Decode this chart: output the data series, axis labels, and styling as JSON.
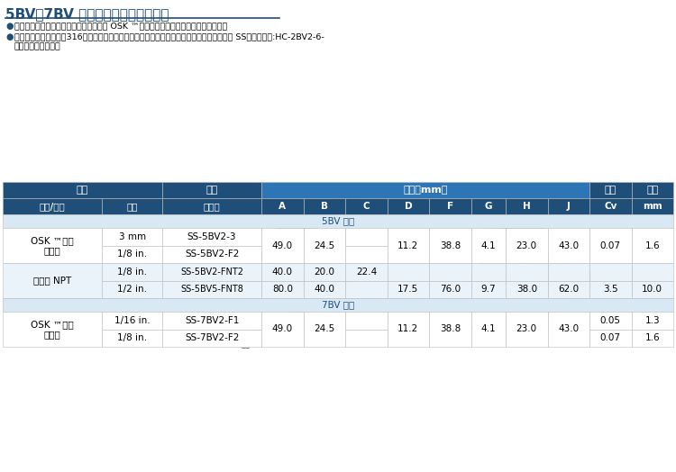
{
  "title": "5BV、7BV 系列订购信息和尺寸数据",
  "title_color": "#1F4E79",
  "bullet1": "尺寸仅供参考，可能有变动。所示尺寸是 OSK ™卡套管接头螺母用手指拧紧时的尺寸。",
  "bullet2a": "基本订购号指定材质为316不锈钙。选择特殊材质时，在基本订购号中用相应的材质代码取代 SS即可。示例:HC-2BV2-6-",
  "bullet2b": "（哈氏合金材质）。",
  "header_bg": "#1F4E79",
  "header_text": "#FFFFFF",
  "subheader_bg": "#2E75B6",
  "subheader_text": "#FFFFFF",
  "section_bg": "#D9E8F5",
  "section_text": "#1F4E79",
  "row_bg1": "#FFFFFF",
  "row_bg2": "#EBF3FA",
  "border_color": "#BBBBBB",
  "dim_line_color": "#333333",
  "diagram_edge": "#444444",
  "diagram_face_body": "#DEDEDE",
  "diagram_face_port": "#CCCCCC",
  "diagram_face_knob": "#C0C0C0"
}
